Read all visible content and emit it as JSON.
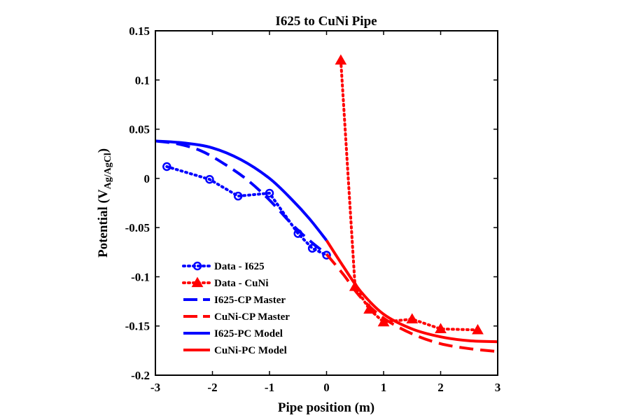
{
  "chart_data": {
    "type": "line",
    "title": "I625 to CuNi Pipe",
    "xlabel": "Pipe position (m)",
    "ylabel_main": "Potential (V",
    "ylabel_sub": "Ag/AgCl",
    "ylabel_close": ")",
    "xlim": [
      -3,
      3
    ],
    "ylim": [
      -0.2,
      0.15
    ],
    "x_ticks": [
      -3,
      -2,
      -1,
      0,
      1,
      2,
      3
    ],
    "x_tick_labels": [
      "-3",
      "-2",
      "-1",
      "0",
      "1",
      "2",
      "3"
    ],
    "y_ticks": [
      0.15,
      0.1,
      0.05,
      0,
      -0.05,
      -0.1,
      -0.15,
      -0.2
    ],
    "y_tick_labels": [
      "0.15",
      "0.1",
      "0.05",
      "0",
      "-0.05",
      "-0.1",
      "-0.15",
      "-0.2"
    ],
    "grid": false,
    "legend_position": "bottom-left",
    "series": [
      {
        "name": "Data - I625",
        "color": "#0000ff",
        "style": "dotted",
        "marker": "circle",
        "x": [
          -2.8,
          -2.05,
          -1.55,
          -1.0,
          -0.5,
          -0.25,
          0.0
        ],
        "y": [
          0.012,
          -0.001,
          -0.018,
          -0.015,
          -0.056,
          -0.071,
          -0.078
        ]
      },
      {
        "name": "Data - CuNi",
        "color": "#ff0000",
        "style": "dotted",
        "marker": "triangle",
        "x": [
          0.25,
          0.5,
          0.75,
          1.0,
          1.5,
          2.0,
          2.65
        ],
        "y": [
          0.12,
          -0.11,
          -0.133,
          -0.146,
          -0.143,
          -0.153,
          -0.154
        ]
      },
      {
        "name": "I625-CP Master",
        "color": "#0000ff",
        "style": "dashed",
        "marker": "none",
        "x": [
          -3.0,
          -2.6,
          -2.2,
          -1.8,
          -1.4,
          -1.0,
          -0.6,
          -0.3,
          0.0
        ],
        "y": [
          0.038,
          0.035,
          0.028,
          0.015,
          -0.001,
          -0.022,
          -0.047,
          -0.063,
          -0.077
        ]
      },
      {
        "name": "CuNi-CP Master",
        "color": "#ff0000",
        "style": "dashed",
        "marker": "none",
        "x": [
          0.0,
          0.3,
          0.6,
          1.0,
          1.5,
          2.0,
          2.5,
          3.0
        ],
        "y": [
          -0.077,
          -0.098,
          -0.121,
          -0.142,
          -0.158,
          -0.168,
          -0.173,
          -0.176
        ]
      },
      {
        "name": "I625-PC Model",
        "color": "#0000ff",
        "style": "solid",
        "marker": "none",
        "x": [
          -3.0,
          -2.5,
          -2.0,
          -1.5,
          -1.0,
          -0.6,
          -0.3,
          0.0
        ],
        "y": [
          0.038,
          0.036,
          0.031,
          0.019,
          0.0,
          -0.022,
          -0.041,
          -0.063
        ]
      },
      {
        "name": "CuNi-PC Model",
        "color": "#ff0000",
        "style": "solid",
        "marker": "none",
        "x": [
          0.0,
          0.3,
          0.6,
          1.0,
          1.5,
          2.0,
          2.5,
          3.0
        ],
        "y": [
          -0.063,
          -0.09,
          -0.115,
          -0.138,
          -0.153,
          -0.161,
          -0.165,
          -0.166
        ]
      }
    ]
  }
}
